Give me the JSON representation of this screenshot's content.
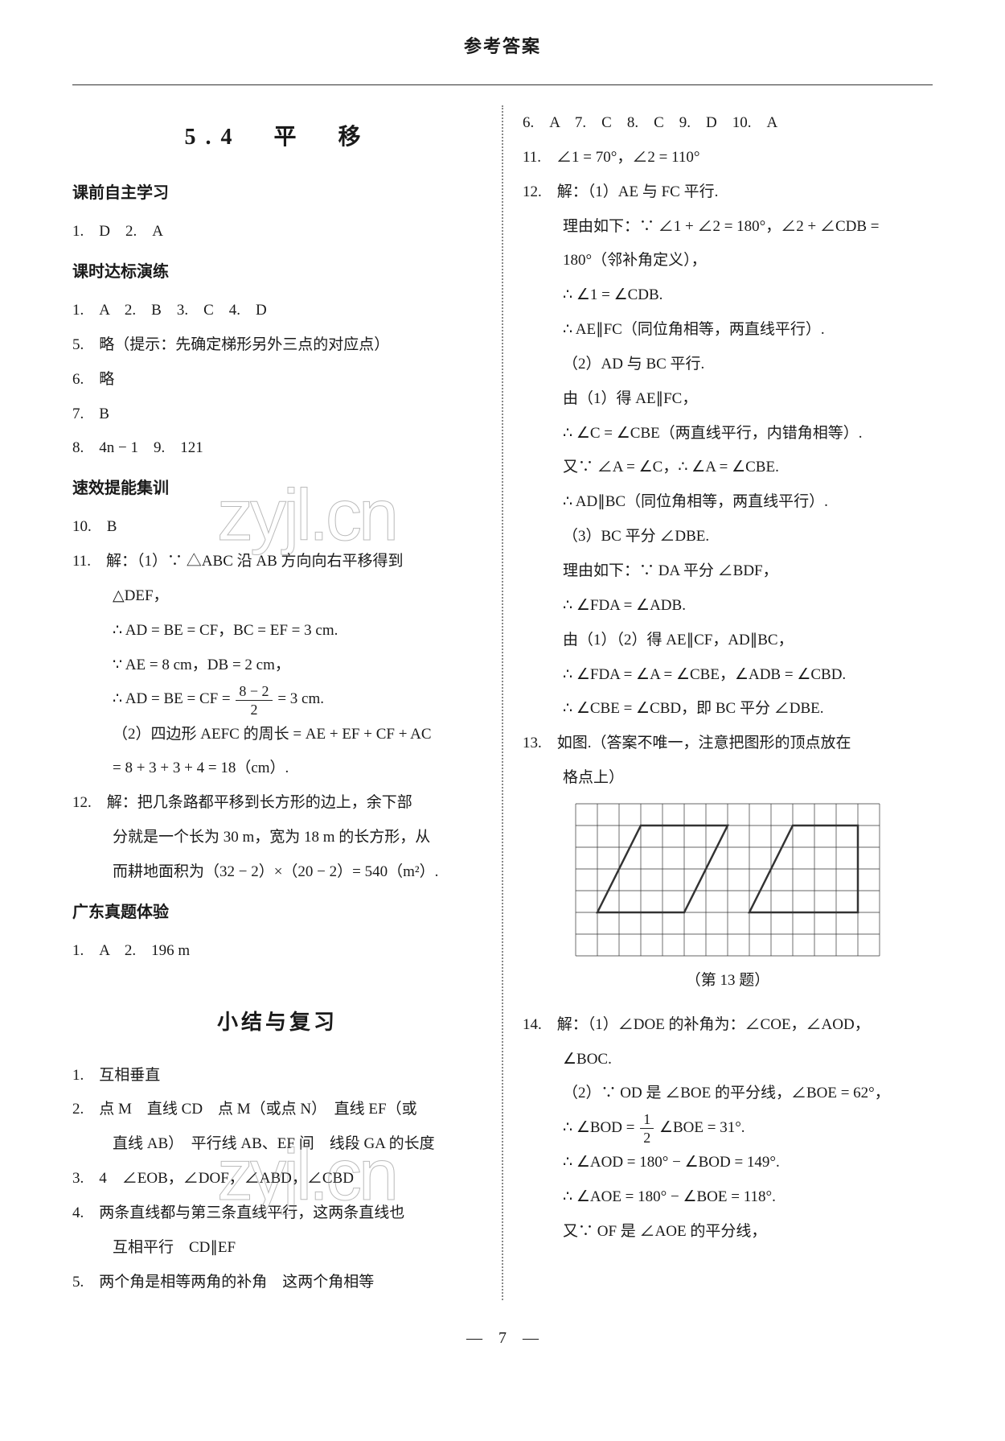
{
  "header": "参考答案",
  "footer_page": "7",
  "watermark_text": "zyjl.cn",
  "left": {
    "title": "5.4　平　移",
    "sections": [
      {
        "heading": "课前自主学习",
        "lines": [
          "1.　D　2.　A"
        ]
      },
      {
        "heading": "课时达标演练",
        "lines": [
          "1.　A　2.　B　3.　C　4.　D",
          "5.　略（提示：先确定梯形另外三点的对应点）",
          "6.　略",
          "7.　B",
          "8.　4n − 1　9.　121"
        ]
      },
      {
        "heading": "速效提能集训",
        "lines": [
          "10.　B"
        ]
      }
    ],
    "q11": {
      "lead": "11.　解：（1）∵ △ABC 沿 AB 方向向右平移得到",
      "l2": "△DEF，",
      "l3": "∴ AD = BE = CF，BC = EF = 3 cm.",
      "l4": "∵ AE = 8 cm，DB = 2 cm，",
      "l5_pre": "∴ AD = BE = CF = ",
      "l5_post": " = 3 cm.",
      "frac_n": "8 − 2",
      "frac_d": "2",
      "l6": "（2）四边形 AEFC 的周长 = AE + EF + CF + AC",
      "l7": "= 8 + 3 + 3 + 4 = 18（cm）."
    },
    "q12": {
      "l1": "12.　解：把几条路都平移到长方形的边上，余下部",
      "l2": "分就是一个长为 30 m，宽为 18 m 的长方形，从",
      "l3": "而耕地面积为（32 − 2）×（20 − 2）= 540（m²）."
    },
    "gdzt": {
      "heading": "广东真题体验",
      "line": "1.　A　2.　196 m"
    },
    "review": {
      "title": "小结与复习",
      "lines": [
        "1.　互相垂直",
        "2.　点 M　直线 CD　点 M（或点 N）　直线 EF（或",
        "直线 AB）　平行线 AB、EF 间　线段 GA 的长度",
        "3.　4　∠EOB，∠DOF，∠ABD，∠CBD",
        "4.　两条直线都与第三条直线平行，这两条直线也",
        "互相平行　CD∥EF",
        "5.　两个角是相等两角的补角　这两个角相等"
      ]
    }
  },
  "right": {
    "mc": "6.　A　7.　C　8.　C　9.　D　10.　A",
    "q11": "11.　∠1 = 70°，∠2 = 110°",
    "q12": {
      "l1": "12.　解：（1）AE 与 FC 平行.",
      "l2": "理由如下：∵ ∠1 + ∠2 = 180°，∠2 + ∠CDB =",
      "l3": "180°（邻补角定义），",
      "l4": "∴ ∠1 = ∠CDB.",
      "l5": "∴ AE∥FC（同位角相等，两直线平行）.",
      "l6": "（2）AD 与 BC 平行.",
      "l7": "由（1）得 AE∥FC，",
      "l8": "∴ ∠C = ∠CBE（两直线平行，内错角相等）.",
      "l9": "又∵ ∠A = ∠C，∴ ∠A = ∠CBE.",
      "l10": "∴ AD∥BC（同位角相等，两直线平行）.",
      "l11": "（3）BC 平分 ∠DBE.",
      "l12": "理由如下：∵ DA 平分 ∠BDF，",
      "l13": "∴ ∠FDA = ∠ADB.",
      "l14": "由（1）（2）得 AE∥CF，AD∥BC，",
      "l15": "∴ ∠FDA = ∠A = ∠CBE，∠ADB = ∠CBD.",
      "l16": "∴ ∠CBE = ∠CBD，即 BC 平分 ∠DBE."
    },
    "q13": {
      "l1": "13.　如图.（答案不唯一，注意把图形的顶点放在",
      "l2": "格点上）",
      "caption": "（第 13 题）"
    },
    "q14": {
      "l1": "14.　解：（1）∠DOE 的补角为：∠COE，∠AOD，",
      "l2": "∠BOC.",
      "l3": "（2）∵ OD 是 ∠BOE 的平分线，∠BOE = 62°，",
      "l4_pre": "∴ ∠BOD = ",
      "l4_post": " ∠BOE = 31°.",
      "frac_n": "1",
      "frac_d": "2",
      "l5": "∴ ∠AOD = 180° − ∠BOD = 149°.",
      "l6": "∴ ∠AOE = 180° − ∠BOE = 118°.",
      "l7": "又∵ OF 是 ∠AOE 的平分线，"
    },
    "grid": {
      "cols": 14,
      "rows": 7,
      "cell": 27,
      "stroke": "#333333",
      "poly1": [
        [
          1,
          5
        ],
        [
          3,
          1
        ],
        [
          7,
          1
        ],
        [
          5,
          5
        ]
      ],
      "poly2": [
        [
          8,
          5
        ],
        [
          10,
          1
        ],
        [
          13,
          1
        ],
        [
          13,
          5
        ]
      ]
    }
  }
}
